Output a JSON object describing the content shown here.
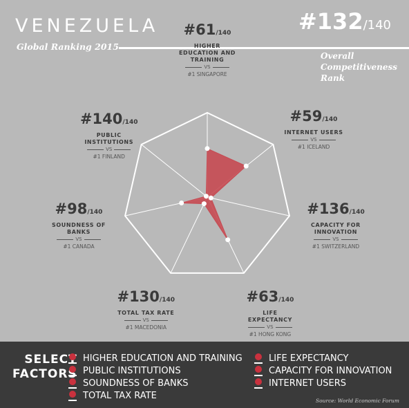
{
  "header": {
    "country": "VENEZUELA",
    "subtitle": "Global Ranking 2015",
    "overall_rank": "#132",
    "overall_of": "/140",
    "overall_label": [
      "Overall",
      "Competitiveness",
      "Rank"
    ]
  },
  "colors": {
    "accent": "#c9313e",
    "fill": "#c64a52",
    "background": "#b9b9b9",
    "footer": "#3a3a3a"
  },
  "chart_data": {
    "type": "radar",
    "max_rank": 140,
    "axes": [
      {
        "name": "HIGHER EDUCATION AND TRAINING",
        "name_lines": [
          "HIGHER",
          "EDUCATION AND",
          "TRAINING"
        ],
        "rank": "#61",
        "rank_value": 61,
        "of": "/140",
        "vs": "VS",
        "best": "#1 SINGAPORE"
      },
      {
        "name": "INTERNET USERS",
        "name_lines": [
          "INTERNET USERS"
        ],
        "rank": "#59",
        "rank_value": 59,
        "of": "/140",
        "vs": "VS",
        "best": "#1 ICELAND"
      },
      {
        "name": "CAPACITY FOR INNOVATION",
        "name_lines": [
          "CAPACITY FOR",
          "INNOVATION"
        ],
        "rank": "#136",
        "rank_value": 136,
        "of": "/140",
        "vs": "VS",
        "best": "#1 SWITZERLAND"
      },
      {
        "name": "LIFE EXPECTANCY",
        "name_lines": [
          "LIFE",
          "EXPECTANCY"
        ],
        "rank": "#63",
        "rank_value": 63,
        "of": "/140",
        "vs": "VS",
        "best": "#1 HONG KONG"
      },
      {
        "name": "TOTAL TAX RATE",
        "name_lines": [
          "TOTAL TAX RATE"
        ],
        "rank": "#130",
        "rank_value": 130,
        "of": "/140",
        "vs": "VS",
        "best": "#1 MACEDONIA"
      },
      {
        "name": "SOUNDNESS OF BANKS",
        "name_lines": [
          "SOUNDNESS OF",
          "BANKS"
        ],
        "rank": "#98",
        "rank_value": 98,
        "of": "/140",
        "vs": "VS",
        "best": "#1 CANADA"
      },
      {
        "name": "PUBLIC INSTITUTIONS",
        "name_lines": [
          "PUBLIC",
          "INSTITUTIONS"
        ],
        "rank": "#140",
        "rank_value": 140,
        "of": "/140",
        "vs": "VS",
        "best": "#1 FINLAND"
      }
    ]
  },
  "footer": {
    "select_title": [
      "SELECT",
      "FACTORS"
    ],
    "options_left": [
      "HIGHER EDUCATION AND TRAINING",
      "PUBLIC INSTITUTIONS",
      "SOUNDNESS OF BANKS",
      "TOTAL TAX RATE"
    ],
    "options_right": [
      "LIFE EXPECTANCY",
      "CAPACITY FOR INNOVATION",
      "INTERNET USERS"
    ],
    "source": "Source: World Economic Forum"
  }
}
